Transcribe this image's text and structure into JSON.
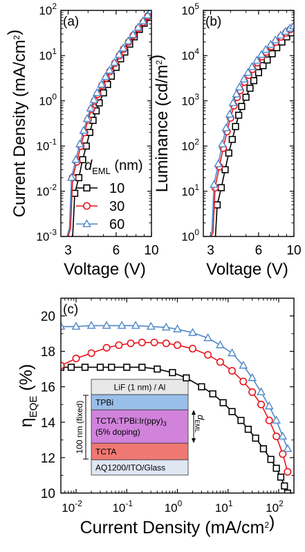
{
  "chart_data": [
    {
      "panel": "(a)",
      "type": "line",
      "xlabel": "Voltage (V)",
      "ylabel": "Current Density (mA/cm²)",
      "xscale": "log",
      "yscale": "log",
      "xlim": [
        2.7,
        10
      ],
      "ylim": [
        0.001,
        100
      ],
      "xticks": [
        3,
        6,
        10
      ],
      "yticks": [
        0.001,
        0.01,
        0.1,
        1,
        10,
        100
      ],
      "ytick_labels": [
        "10^-3",
        "10^-2",
        "10^-1",
        "10^0",
        "10^1",
        "10^2"
      ],
      "legend": {
        "title": "d_EML (nm)",
        "position": "center-right",
        "entries": [
          "10",
          "30",
          "60"
        ]
      },
      "series": [
        {
          "name": "10",
          "color": "#000000",
          "marker": "square",
          "x": [
            3.3,
            3.5,
            3.7,
            3.9,
            4.1,
            4.3,
            4.5,
            4.7,
            5.0,
            5.3,
            5.6,
            6.0,
            6.4,
            6.8,
            7.3,
            7.8,
            8.4,
            9.0,
            9.6
          ],
          "y": [
            0.009,
            0.02,
            0.05,
            0.1,
            0.2,
            0.37,
            0.6,
            0.9,
            1.5,
            2.3,
            3.5,
            5.5,
            8.5,
            12,
            18,
            26,
            38,
            52,
            70
          ]
        },
        {
          "name": "30",
          "color": "#e8141b",
          "marker": "circle",
          "x": [
            3.2,
            3.4,
            3.6,
            3.8,
            4.0,
            4.2,
            4.4,
            4.6,
            4.9,
            5.2,
            5.5,
            5.9,
            6.3,
            6.7,
            7.2,
            7.7,
            8.3,
            8.9,
            9.5
          ],
          "y": [
            0.02,
            0.045,
            0.1,
            0.2,
            0.38,
            0.65,
            1.0,
            1.4,
            2.2,
            3.2,
            4.5,
            6.8,
            10,
            14,
            20,
            28,
            40,
            55,
            75
          ]
        },
        {
          "name": "60",
          "color": "#4f88c7",
          "marker": "triangle",
          "x": [
            3.15,
            3.35,
            3.55,
            3.75,
            3.95,
            4.15,
            4.35,
            4.55,
            4.85,
            5.15,
            5.45,
            5.85,
            6.25,
            6.65,
            7.15,
            7.65,
            8.25,
            8.85,
            9.45,
            9.95
          ],
          "y": [
            0.02,
            0.05,
            0.11,
            0.22,
            0.4,
            0.68,
            1.05,
            1.5,
            2.3,
            3.4,
            4.7,
            7.0,
            10.5,
            14.5,
            21,
            29,
            42,
            58,
            78,
            98
          ]
        }
      ]
    },
    {
      "panel": "(b)",
      "type": "line",
      "xlabel": "Voltage (V)",
      "ylabel": "Luminance (cd/m²)",
      "xscale": "log",
      "yscale": "log",
      "xlim": [
        2.7,
        10
      ],
      "ylim": [
        1,
        100000
      ],
      "xticks": [
        3,
        6,
        10
      ],
      "yticks": [
        1,
        10,
        100,
        1000,
        10000,
        100000
      ],
      "ytick_labels": [
        "10^0",
        "10^1",
        "10^2",
        "10^3",
        "10^4",
        "10^5"
      ],
      "series": [
        {
          "name": "10",
          "color": "#000000",
          "marker": "square",
          "x": [
            3.3,
            3.5,
            3.7,
            3.9,
            4.1,
            4.3,
            4.5,
            4.7,
            5.0,
            5.3,
            5.6,
            6.0,
            6.4,
            6.8,
            7.3,
            7.8,
            8.4,
            9.0,
            9.6
          ],
          "y": [
            5,
            12,
            30,
            70,
            140,
            270,
            480,
            750,
            1200,
            1900,
            2800,
            4200,
            6000,
            8000,
            11000,
            15000,
            20000,
            26000,
            32000
          ]
        },
        {
          "name": "30",
          "color": "#e8141b",
          "marker": "circle",
          "x": [
            3.2,
            3.4,
            3.6,
            3.8,
            4.0,
            4.2,
            4.4,
            4.6,
            4.9,
            5.2,
            5.5,
            5.9,
            6.3,
            6.7,
            7.2,
            7.7,
            8.3,
            8.9,
            9.5
          ],
          "y": [
            12,
            35,
            90,
            210,
            420,
            780,
            1200,
            1700,
            2600,
            3700,
            5000,
            7000,
            9500,
            12000,
            16000,
            20000,
            26000,
            32000,
            38000
          ]
        },
        {
          "name": "60",
          "color": "#4f88c7",
          "marker": "triangle",
          "x": [
            3.15,
            3.35,
            3.55,
            3.75,
            3.95,
            4.15,
            4.35,
            4.55,
            4.85,
            5.15,
            5.45,
            5.85,
            6.25,
            6.65,
            7.15,
            7.65,
            8.25,
            8.85,
            9.45,
            9.95
          ],
          "y": [
            14,
            40,
            110,
            250,
            500,
            900,
            1400,
            2000,
            3000,
            4200,
            5600,
            7800,
            10500,
            13500,
            17500,
            22000,
            28000,
            34000,
            40000,
            45000
          ]
        }
      ]
    },
    {
      "panel": "(c)",
      "type": "line",
      "xlabel": "Current Density (mA/cm²)",
      "ylabel": "η_EQE (%)",
      "xscale": "log",
      "yscale": "linear",
      "xlim": [
        0.005,
        200
      ],
      "ylim": [
        10,
        21
      ],
      "xticks": [
        0.01,
        0.1,
        1,
        10,
        100
      ],
      "xtick_labels": [
        "10^-2",
        "10^-1",
        "10^0",
        "10^1",
        "10^2"
      ],
      "yticks": [
        10,
        12,
        14,
        16,
        18,
        20
      ],
      "inset": {
        "layers": [
          "LiF (1 nm) / Al",
          "TPBi",
          "TCTA:TPBi:Ir(ppy)3 (5% doping)",
          "TCTA",
          "AQ1200/ITO/Glass"
        ],
        "left_label": "100 nm (fixed)",
        "right_label": "d_EML"
      },
      "series": [
        {
          "name": "10",
          "color": "#000000",
          "marker": "square",
          "x": [
            0.005,
            0.008,
            0.015,
            0.03,
            0.05,
            0.1,
            0.2,
            0.4,
            0.8,
            1.5,
            3,
            5,
            8,
            12,
            18,
            25,
            35,
            50,
            70,
            90,
            110,
            130,
            150
          ],
          "y": [
            17.1,
            17.1,
            17.1,
            17.1,
            17.1,
            17.1,
            17.1,
            17.0,
            16.8,
            16.5,
            16.0,
            15.6,
            15.1,
            14.6,
            14.1,
            13.6,
            13.1,
            12.5,
            11.9,
            11.4,
            10.9,
            10.4,
            10.0
          ]
        },
        {
          "name": "30",
          "color": "#e8141b",
          "marker": "circle",
          "x": [
            0.005,
            0.01,
            0.02,
            0.04,
            0.07,
            0.12,
            0.2,
            0.35,
            0.6,
            1,
            2,
            4,
            7,
            12,
            20,
            30,
            45,
            65,
            90,
            120,
            150
          ],
          "y": [
            17.2,
            17.6,
            17.9,
            18.2,
            18.35,
            18.45,
            18.5,
            18.5,
            18.45,
            18.35,
            18.15,
            17.8,
            17.4,
            16.9,
            16.3,
            15.7,
            15.0,
            14.1,
            13.2,
            12.2,
            11.2
          ]
        },
        {
          "name": "60",
          "color": "#4f88c7",
          "marker": "triangle",
          "x": [
            0.005,
            0.01,
            0.02,
            0.04,
            0.08,
            0.15,
            0.3,
            0.6,
            1,
            2,
            4,
            7,
            12,
            20,
            30,
            45,
            65,
            90,
            120,
            150
          ],
          "y": [
            19.4,
            19.4,
            19.45,
            19.45,
            19.45,
            19.45,
            19.4,
            19.35,
            19.25,
            19.05,
            18.75,
            18.35,
            17.9,
            17.2,
            16.5,
            15.7,
            14.9,
            14.1,
            13.2,
            12.5
          ]
        }
      ]
    }
  ]
}
